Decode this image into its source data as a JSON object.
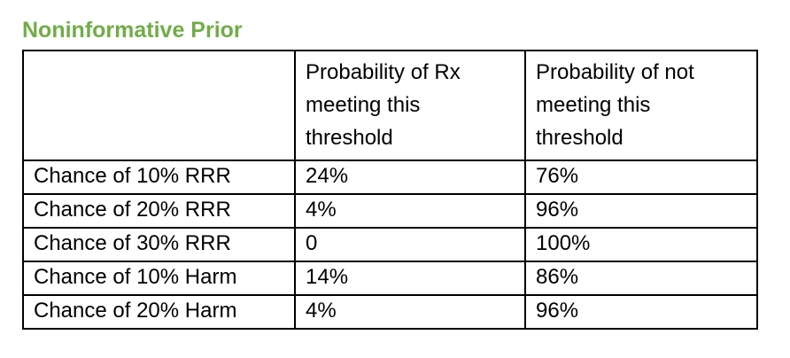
{
  "page": {
    "title": "Noninformative Prior",
    "title_color": "#70ad47",
    "background_color": "#ffffff",
    "text_color": "#000000",
    "border_color": "#000000"
  },
  "table": {
    "header": {
      "row_label": "",
      "col_meeting": "Probability of Rx\nmeeting this\nthreshold",
      "col_not_meeting": "Probability of not\nmeeting this\nthreshold"
    },
    "rows": [
      {
        "label": "Chance of 10% RRR",
        "meeting": "24%",
        "not_meeting": "76%"
      },
      {
        "label": "Chance of 20% RRR",
        "meeting": "4%",
        "not_meeting": "96%"
      },
      {
        "label": "Chance of 30% RRR",
        "meeting": "0",
        "not_meeting": "100%"
      },
      {
        "label": "Chance of 10% Harm",
        "meeting": "14%",
        "not_meeting": "86%"
      },
      {
        "label": "Chance of 20% Harm",
        "meeting": "4%",
        "not_meeting": "96%"
      }
    ]
  }
}
